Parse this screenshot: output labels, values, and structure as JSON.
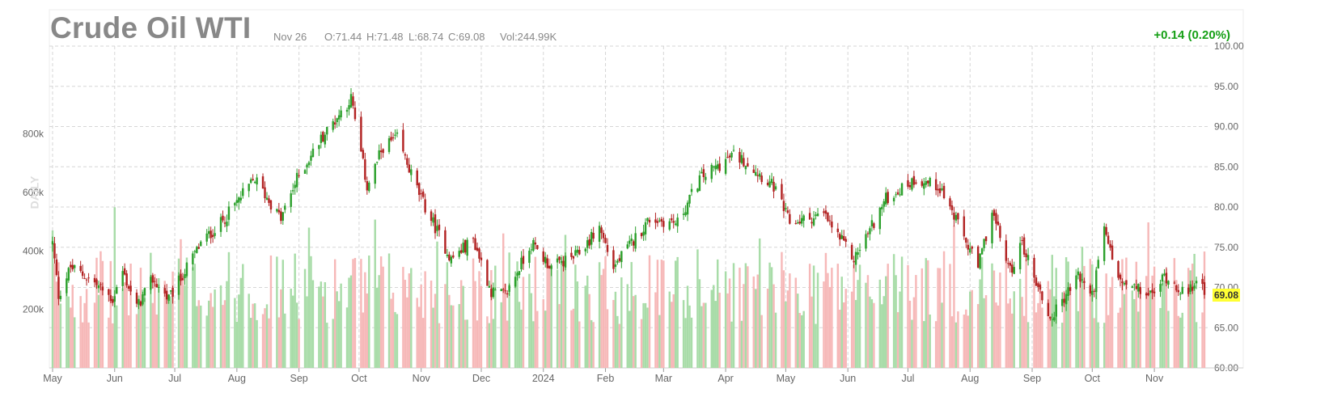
{
  "header": {
    "title": "Crude Oil WTI",
    "date": "Nov 26",
    "open": "O:71.44",
    "high": "H:71.48",
    "low": "L:68.74",
    "close": "C:69.08",
    "volume": "Vol:244.99K",
    "change": "+0.14 (0.20%)"
  },
  "period_label": "DAILY",
  "last_price_label": "69.08",
  "colors": {
    "up": "#2ca02c",
    "down": "#b22222",
    "vol_up": "#a8dca8",
    "vol_down": "#f6b8b8",
    "grid": "#d6d6d6",
    "axis_text": "#666666",
    "change_text": "#16a016",
    "badge": "#ffff33"
  },
  "chart_data": {
    "type": "candlestick",
    "title": "Crude Oil WTI",
    "x_axis": {
      "labels": [
        "May",
        "Jun",
        "Jul",
        "Aug",
        "Sep",
        "Oct",
        "Nov",
        "Dec",
        "2024",
        "Feb",
        "Mar",
        "Apr",
        "May",
        "Jun",
        "Jul",
        "Aug",
        "Sep",
        "Oct",
        "Nov"
      ]
    },
    "y_axis": {
      "range": [
        60,
        100
      ],
      "ticks": [
        "100.00",
        "95.00",
        "90.00",
        "85.00",
        "80.00",
        "75.00",
        "70.00",
        "65.00",
        "60.00"
      ]
    },
    "volume_axis": {
      "ticks": [
        "800k",
        "600k",
        "400k",
        "200k"
      ],
      "range": [
        0,
        1100000
      ]
    },
    "grid": true,
    "last_close": 69.08,
    "price_keyframes": [
      [
        "2023-05-01",
        75.5
      ],
      [
        "2023-05-04",
        69.0
      ],
      [
        "2023-05-10",
        72.5
      ],
      [
        "2023-05-20",
        71.0
      ],
      [
        "2023-05-31",
        68.5
      ],
      [
        "2023-06-05",
        72.0
      ],
      [
        "2023-06-12",
        67.5
      ],
      [
        "2023-06-20",
        71.0
      ],
      [
        "2023-06-28",
        68.5
      ],
      [
        "2023-07-14",
        75.5
      ],
      [
        "2023-07-24",
        78.0
      ],
      [
        "2023-08-10",
        83.5
      ],
      [
        "2023-08-23",
        78.5
      ],
      [
        "2023-08-31",
        83.5
      ],
      [
        "2023-09-12",
        88.5
      ],
      [
        "2023-09-27",
        93.5
      ],
      [
        "2023-10-05",
        82.5
      ],
      [
        "2023-10-13",
        87.5
      ],
      [
        "2023-10-20",
        88.5
      ],
      [
        "2023-11-01",
        81.0
      ],
      [
        "2023-11-16",
        73.5
      ],
      [
        "2023-11-27",
        76.0
      ],
      [
        "2023-12-06",
        69.5
      ],
      [
        "2023-12-13",
        69.0
      ],
      [
        "2023-12-26",
        75.5
      ],
      [
        "2024-01-05",
        72.5
      ],
      [
        "2024-01-18",
        74.0
      ],
      [
        "2024-01-29",
        77.5
      ],
      [
        "2024-02-05",
        72.5
      ],
      [
        "2024-02-23",
        78.5
      ],
      [
        "2024-03-08",
        78.0
      ],
      [
        "2024-03-19",
        83.5
      ],
      [
        "2024-04-05",
        86.5
      ],
      [
        "2024-04-12",
        85.5
      ],
      [
        "2024-04-25",
        82.5
      ],
      [
        "2024-05-03",
        78.0
      ],
      [
        "2024-05-20",
        79.0
      ],
      [
        "2024-06-04",
        73.5
      ],
      [
        "2024-06-20",
        81.0
      ],
      [
        "2024-07-05",
        83.5
      ],
      [
        "2024-07-17",
        82.5
      ],
      [
        "2024-08-05",
        72.5
      ],
      [
        "2024-08-12",
        79.5
      ],
      [
        "2024-08-21",
        72.0
      ],
      [
        "2024-08-27",
        75.5
      ],
      [
        "2024-09-10",
        66.0
      ],
      [
        "2024-09-24",
        71.5
      ],
      [
        "2024-10-01",
        69.0
      ],
      [
        "2024-10-07",
        77.0
      ],
      [
        "2024-10-15",
        70.5
      ],
      [
        "2024-10-31",
        69.0
      ],
      [
        "2024-11-06",
        71.5
      ],
      [
        "2024-11-18",
        69.0
      ],
      [
        "2024-11-22",
        71.5
      ],
      [
        "2024-11-26",
        69.08
      ]
    ]
  }
}
